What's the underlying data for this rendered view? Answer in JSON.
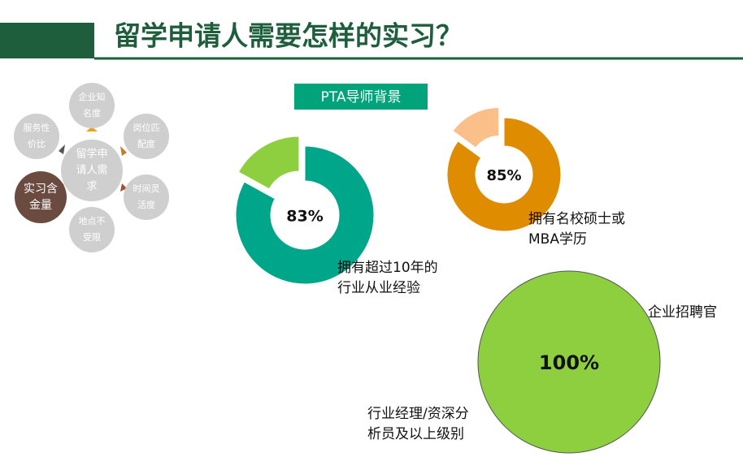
{
  "title": "留学申请人需要怎样的实习？",
  "badge": "PTA导师背景",
  "diagram": {
    "center": [
      "留学申",
      "请人需",
      "求"
    ],
    "nodes": [
      [
        "企业知",
        "名度"
      ],
      [
        "岗位匹",
        "配度"
      ],
      [
        "时间灵",
        "活度"
      ],
      [
        "地点不",
        "受限"
      ],
      [
        "实习含",
        "金量"
      ],
      [
        "服务性",
        "价比"
      ]
    ]
  },
  "chart_data": [
    {
      "type": "pie",
      "donut": true,
      "values": [
        83,
        17
      ],
      "value_labels": [
        "83%",
        null
      ],
      "colors": [
        "#00a68a",
        "#8dcf3f"
      ],
      "annotation": [
        "拥有超过10年的",
        "行业从业经验"
      ]
    },
    {
      "type": "pie",
      "donut": true,
      "values": [
        85,
        15
      ],
      "value_labels": [
        "85%",
        null
      ],
      "colors": [
        "#e08c00",
        "#fbbf8a"
      ],
      "annotation": [
        "拥有名校硕士或",
        "MBA学历"
      ]
    },
    {
      "type": "pie",
      "donut": false,
      "values": [
        100
      ],
      "value_labels": [
        "100%"
      ],
      "colors": [
        "#8dcf3f"
      ],
      "annotation": [
        "企业招聘官",
        "行业经理/资深分",
        "析员及以上级别"
      ]
    }
  ]
}
